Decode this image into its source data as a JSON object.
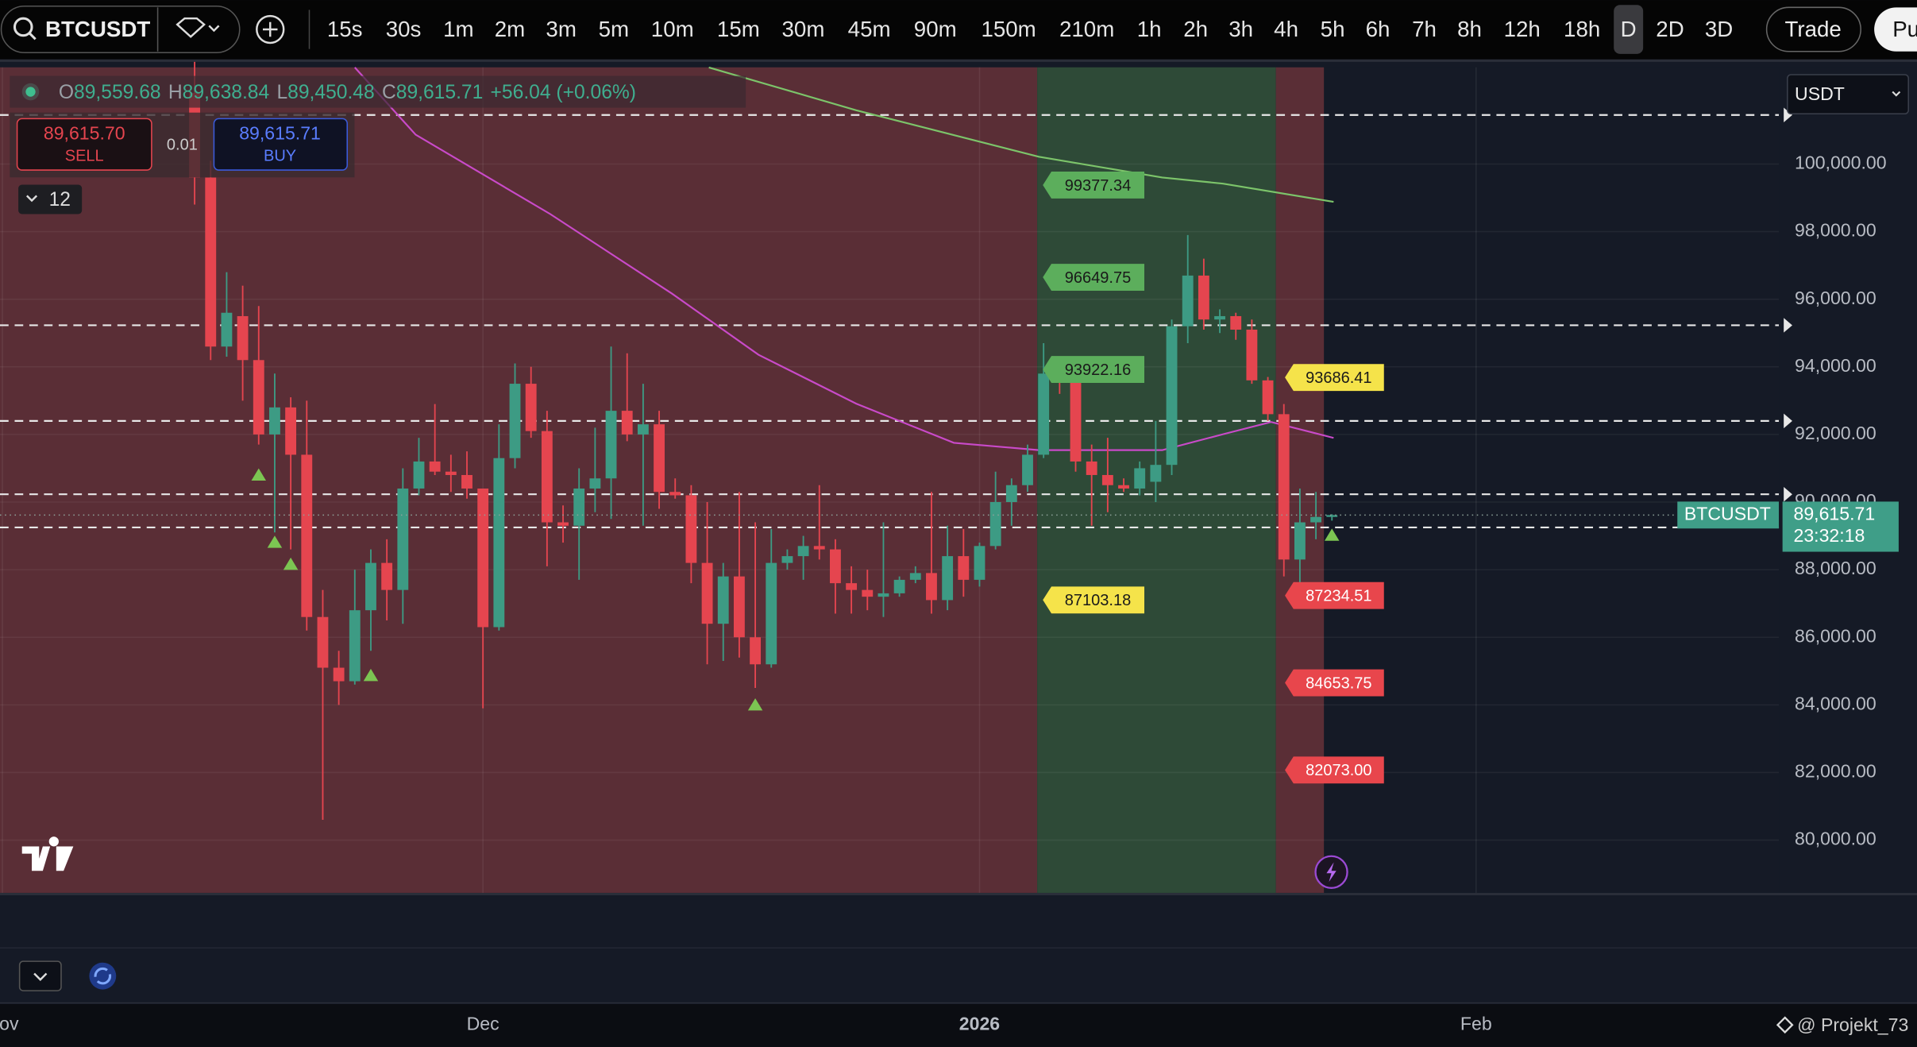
{
  "toolbar": {
    "symbol": "BTCUSDT",
    "timeframes": [
      "15s",
      "30s",
      "1m",
      "2m",
      "3m",
      "5m",
      "10m",
      "15m",
      "30m",
      "45m",
      "90m",
      "150m",
      "210m",
      "1h",
      "2h",
      "3h",
      "4h",
      "5h",
      "6h",
      "7h",
      "8h",
      "12h",
      "18h",
      "D",
      "2D",
      "3D"
    ],
    "active_timeframe": "D",
    "trade": "Trade",
    "publish": "Pu"
  },
  "legend": {
    "items": [
      {
        "key": "O",
        "value": "89,559.68"
      },
      {
        "key": "H",
        "value": "89,638.84"
      },
      {
        "key": "L",
        "value": "89,450.48"
      },
      {
        "key": "C",
        "value": "89,615.71"
      }
    ],
    "change": "+56.04 (+0.06%)"
  },
  "order": {
    "sell_price": "89,615.70",
    "sell": "SELL",
    "quantity": "0.01",
    "buy_price": "89,615.71",
    "buy": "BUY"
  },
  "indicators_count": "12",
  "currency": "USDT",
  "price_tag": {
    "symbol": "BTCUSDT",
    "price": "89,615.71",
    "countdown": "23:32:18"
  },
  "watermark": "@ Projekt_73",
  "chart_data": {
    "type": "candlestick",
    "x": [
      12,
      13,
      14,
      15,
      16,
      17,
      18,
      19,
      20,
      21,
      22,
      23,
      24,
      25,
      26,
      27,
      28,
      29,
      30,
      31,
      32,
      33,
      34,
      35,
      36,
      37,
      38,
      39,
      40,
      41,
      42,
      43,
      44,
      45,
      46,
      47,
      48,
      49,
      50,
      51,
      52,
      53,
      54,
      55,
      56,
      57,
      58,
      59,
      60,
      61,
      62,
      63,
      64,
      65,
      66,
      67,
      68,
      69,
      70,
      71,
      72,
      73,
      74,
      75,
      76,
      77,
      78,
      79,
      80,
      81,
      82,
      83
    ],
    "candles": [
      [
        102100,
        103500,
        98800,
        99600
      ],
      [
        99600,
        100100,
        94200,
        94600
      ],
      [
        94600,
        96800,
        94300,
        95600
      ],
      [
        95500,
        96400,
        93000,
        94200
      ],
      [
        94200,
        95800,
        91700,
        92000
      ],
      [
        92000,
        93800,
        89100,
        92800
      ],
      [
        92800,
        93100,
        88600,
        91400
      ],
      [
        91400,
        93000,
        86200,
        86600
      ],
      [
        86600,
        87400,
        80600,
        85100
      ],
      [
        85100,
        85600,
        84000,
        84700
      ],
      [
        84700,
        88000,
        84600,
        86800
      ],
      [
        86800,
        88600,
        85600,
        88200
      ],
      [
        88200,
        88900,
        86500,
        87400
      ],
      [
        87400,
        91000,
        86400,
        90400
      ],
      [
        90400,
        91900,
        90200,
        91200
      ],
      [
        91200,
        92900,
        90800,
        90900
      ],
      [
        90900,
        91400,
        90300,
        90800
      ],
      [
        90800,
        91500,
        90100,
        90400
      ],
      [
        90400,
        90400,
        83900,
        86300
      ],
      [
        86300,
        92300,
        86200,
        91300
      ],
      [
        91300,
        94100,
        91000,
        93500
      ],
      [
        93500,
        94000,
        91900,
        92100
      ],
      [
        92100,
        92700,
        88100,
        89400
      ],
      [
        89400,
        89900,
        88800,
        89300
      ],
      [
        89300,
        91000,
        87700,
        90400
      ],
      [
        90400,
        92200,
        89700,
        90700
      ],
      [
        90700,
        94600,
        89500,
        92700
      ],
      [
        92700,
        94400,
        91800,
        92000
      ],
      [
        92000,
        93500,
        89300,
        92300
      ],
      [
        92300,
        92700,
        89800,
        90300
      ],
      [
        90300,
        90700,
        90100,
        90200
      ],
      [
        90200,
        90500,
        87600,
        88200
      ],
      [
        88200,
        90000,
        85200,
        86400
      ],
      [
        86400,
        88200,
        85300,
        87800
      ],
      [
        87800,
        90300,
        85400,
        86000
      ],
      [
        86000,
        89400,
        84500,
        85200
      ],
      [
        85200,
        89200,
        85100,
        88200
      ],
      [
        88200,
        88600,
        88000,
        88400
      ],
      [
        88400,
        89000,
        87700,
        88700
      ],
      [
        88700,
        90500,
        88300,
        88600
      ],
      [
        88600,
        88900,
        86700,
        87600
      ],
      [
        87600,
        88100,
        86700,
        87400
      ],
      [
        87400,
        88000,
        86800,
        87200
      ],
      [
        87200,
        89400,
        86600,
        87300
      ],
      [
        87300,
        87800,
        87200,
        87700
      ],
      [
        87700,
        88100,
        87600,
        87900
      ],
      [
        87900,
        90300,
        86700,
        87100
      ],
      [
        87100,
        89300,
        86800,
        88400
      ],
      [
        88400,
        89200,
        87200,
        87700
      ],
      [
        87700,
        88800,
        87500,
        88700
      ],
      [
        88700,
        90900,
        88600,
        90000
      ],
      [
        90000,
        90700,
        89300,
        90500
      ],
      [
        90500,
        91700,
        90300,
        91400
      ],
      [
        91400,
        94700,
        91300,
        93800
      ],
      [
        93900,
        94300,
        93200,
        93600
      ],
      [
        93600,
        94000,
        90900,
        91200
      ],
      [
        91200,
        91700,
        89300,
        90800
      ],
      [
        90800,
        91900,
        89700,
        90500
      ],
      [
        90500,
        90700,
        90300,
        90400
      ],
      [
        90400,
        91200,
        90200,
        91000
      ],
      [
        90600,
        92400,
        90000,
        91100
      ],
      [
        91100,
        95400,
        90800,
        95200
      ],
      [
        95200,
        97900,
        94700,
        96700
      ],
      [
        96700,
        97200,
        95100,
        95400
      ],
      [
        95400,
        95700,
        95000,
        95500
      ],
      [
        95500,
        95600,
        94800,
        95100
      ],
      [
        95100,
        95400,
        93500,
        93600
      ],
      [
        93600,
        93700,
        92400,
        92600
      ],
      [
        92600,
        92900,
        87800,
        88300
      ],
      [
        88300,
        90400,
        87300,
        89400
      ],
      [
        89400,
        90300,
        88900,
        89560
      ],
      [
        89559.68,
        89638.84,
        89450.48,
        89615.71
      ]
    ],
    "up_color": "#3d9b84",
    "down_color": "#e5454f",
    "xlim": [
      -0.15,
      110.9
    ],
    "xticks": [
      {
        "value": 0,
        "label": "Nov"
      },
      {
        "value": 30,
        "label": "Dec"
      },
      {
        "value": 61,
        "label": "2026"
      },
      {
        "value": 92,
        "label": "Feb"
      }
    ],
    "ylim": [
      78440,
      102860
    ],
    "yticks": [
      {
        "value": 80000,
        "label": "80,000.00"
      },
      {
        "value": 82000,
        "label": "82,000.00"
      },
      {
        "value": 84000,
        "label": "84,000.00"
      },
      {
        "value": 86000,
        "label": "86,000.00"
      },
      {
        "value": 88000,
        "label": "88,000.00"
      },
      {
        "value": 90000,
        "label": "90,000.00"
      },
      {
        "value": 92000,
        "label": "92,000.00"
      },
      {
        "value": 94000,
        "label": "94,000.00"
      },
      {
        "value": 96000,
        "label": "96,000.00"
      },
      {
        "value": 98000,
        "label": "98,000.00"
      },
      {
        "value": 100000,
        "label": "100,000.00"
      }
    ],
    "grid": true,
    "zones": [
      {
        "from": -0.15,
        "to": 64.6,
        "color": "#5a2e36"
      },
      {
        "from": 64.6,
        "to": 79.5,
        "color": "#2e4a37"
      },
      {
        "from": 79.5,
        "to": 82.5,
        "color": "#5a2e36"
      }
    ],
    "levels": [
      101450,
      95230,
      92400,
      90230,
      89250
    ],
    "level_labels": [
      {
        "value": 99377.34,
        "label": "99377.34",
        "color": "#5cae5c"
      },
      {
        "value": 96649.75,
        "label": "96649.75",
        "color": "#5cae5c"
      },
      {
        "value": 93922.16,
        "label": "93922.16",
        "color": "#5cae5c"
      },
      {
        "value": 87103.18,
        "label": "87103.18",
        "color": "#f5e34a"
      },
      {
        "value": 93686.41,
        "label": "93686.41",
        "color": "#f5e34a"
      },
      {
        "value": 87234.51,
        "label": "87234.51",
        "color": "#e8464c"
      },
      {
        "value": 84653.75,
        "label": "84653.75",
        "color": "#e8464c"
      },
      {
        "value": 82073.0,
        "label": "82073.00",
        "color": "#e8464c"
      }
    ],
    "moving_averages": [
      {
        "color": "#c94ac9",
        "x": [
          22.0,
          25.8,
          34.2,
          41.8,
          47.2,
          53.3,
          59.4,
          64.7,
          72.4,
          76.2,
          79.2,
          83.1
        ],
        "values": [
          102857,
          100868,
          98517,
          96166,
          94358,
          92911,
          91753,
          91536,
          91536,
          92007,
          92368,
          91898
        ]
      },
      {
        "color": "#7cc46a",
        "x": [
          44.1,
          53.3,
          64.7,
          72.4,
          76.2,
          83.1
        ],
        "values": [
          102857,
          101591,
          100217,
          99602,
          99421,
          98879
        ]
      }
    ],
    "signals": {
      "color": "#7cc552",
      "x": [
        16,
        17,
        18,
        23,
        47,
        83
      ],
      "values": [
        90780,
        88790,
        88140,
        84850,
        83980,
        89000
      ]
    }
  }
}
